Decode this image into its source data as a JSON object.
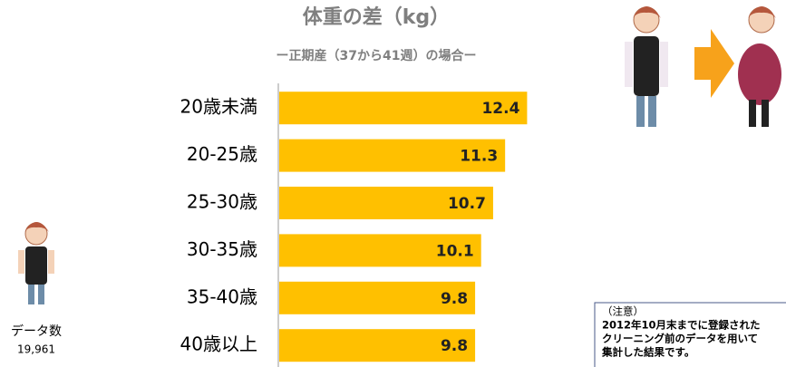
{
  "chart_data": {
    "type": "barh",
    "title": "体重の差（kg）",
    "subtitle": "ー正期産（37から41週）の場合ー",
    "categories": [
      "20歳未満",
      "20-25歳",
      "25-30歳",
      "30-35歳",
      "35-40歳",
      "40歳以上"
    ],
    "values": [
      12.4,
      11.3,
      10.7,
      10.1,
      9.8,
      9.8
    ],
    "color": "#ffc000"
  },
  "sample": {
    "label": "データ数",
    "count": "19,961"
  },
  "note": {
    "heading": "（注意）",
    "lines": [
      "2012年10月末までに登録された",
      "クリーニング前のデータを用いて",
      "集計した結果です。"
    ]
  }
}
